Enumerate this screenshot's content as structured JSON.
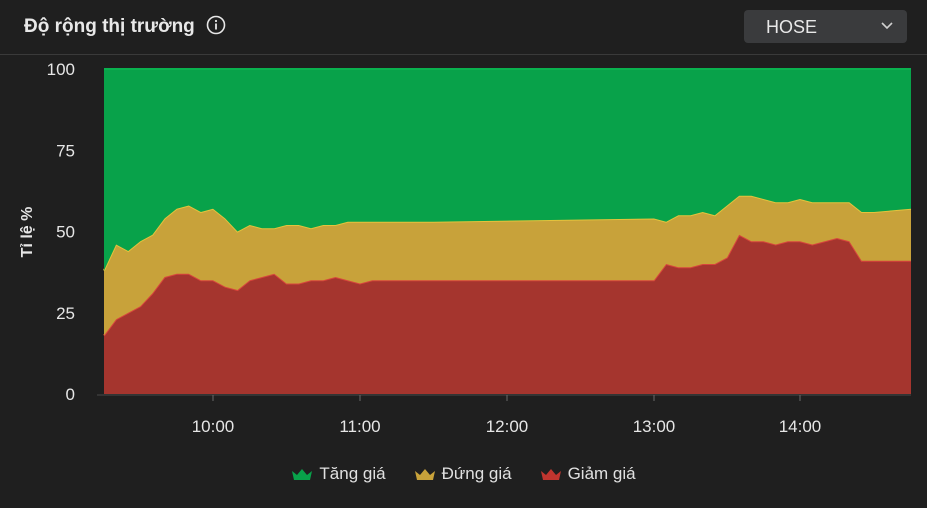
{
  "header": {
    "title": "Độ rộng thị trường",
    "info_icon": "info-circle-icon",
    "exchange_select": {
      "value": "HOSE",
      "icon": "chevron-down-icon"
    }
  },
  "chart_data": {
    "type": "area",
    "stacked": true,
    "ylabel": "Tỉ lệ %",
    "xlabel": "",
    "ylim": [
      0,
      100
    ],
    "y_ticks": [
      0,
      25,
      50,
      75,
      100
    ],
    "x_ticks": [
      "10:00",
      "11:00",
      "12:00",
      "13:00",
      "14:00"
    ],
    "xlim": [
      "09:15",
      "14:45"
    ],
    "grid": false,
    "legend_position": "bottom",
    "x": [
      "09:15",
      "09:20",
      "09:25",
      "09:30",
      "09:35",
      "09:40",
      "09:45",
      "09:50",
      "09:55",
      "10:00",
      "10:05",
      "10:10",
      "10:15",
      "10:20",
      "10:25",
      "10:30",
      "10:35",
      "10:40",
      "10:45",
      "10:50",
      "10:55",
      "11:00",
      "11:05",
      "11:10",
      "11:15",
      "11:20",
      "11:25",
      "11:30",
      "13:00",
      "13:05",
      "13:10",
      "13:15",
      "13:20",
      "13:25",
      "13:30",
      "13:35",
      "13:40",
      "13:45",
      "13:50",
      "13:55",
      "14:00",
      "14:05",
      "14:10",
      "14:15",
      "14:20",
      "14:25",
      "14:30",
      "14:45"
    ],
    "series": [
      {
        "name": "Giảm giá",
        "color": "#a5352e",
        "values": [
          18,
          23,
          25,
          27,
          31,
          36,
          37,
          37,
          35,
          35,
          33,
          32,
          35,
          36,
          37,
          34,
          34,
          35,
          35,
          36,
          35,
          34,
          35,
          35,
          35,
          35,
          35,
          35,
          35,
          40,
          39,
          39,
          40,
          40,
          42,
          49,
          47,
          47,
          46,
          47,
          47,
          46,
          47,
          48,
          47,
          41,
          41,
          41
        ]
      },
      {
        "name": "Đứng giá",
        "color": "#c8a23a",
        "values": [
          20,
          23,
          19,
          20,
          18,
          18,
          20,
          21,
          21,
          22,
          21,
          18,
          17,
          15,
          14,
          18,
          18,
          16,
          17,
          16,
          18,
          19,
          18,
          18,
          18,
          18,
          18,
          18,
          19,
          13,
          16,
          16,
          16,
          15,
          16,
          12,
          14,
          13,
          13,
          12,
          13,
          13,
          12,
          11,
          12,
          15,
          15,
          16
        ]
      },
      {
        "name": "Tăng giá",
        "color": "#08a24a",
        "values": [
          62,
          54,
          56,
          53,
          51,
          46,
          43,
          42,
          44,
          43,
          46,
          50,
          48,
          49,
          49,
          48,
          48,
          49,
          48,
          48,
          47,
          47,
          47,
          47,
          47,
          47,
          47,
          47,
          46,
          47,
          45,
          45,
          44,
          45,
          42,
          39,
          39,
          40,
          41,
          41,
          40,
          41,
          41,
          41,
          41,
          44,
          44,
          43
        ]
      }
    ]
  },
  "legend": [
    {
      "label": "Tăng giá",
      "color": "#08a24a",
      "icon": "crown-marker-icon"
    },
    {
      "label": "Đứng giá",
      "color": "#c8a23a",
      "icon": "crown-marker-icon"
    },
    {
      "label": "Giảm giá",
      "color": "#c0352f",
      "icon": "crown-marker-icon"
    }
  ]
}
